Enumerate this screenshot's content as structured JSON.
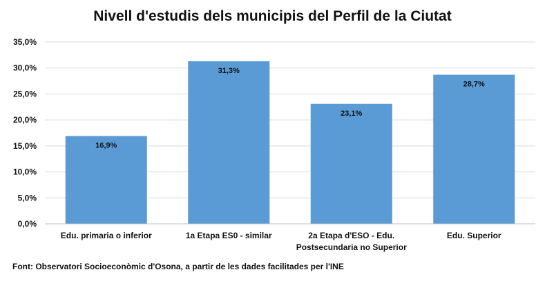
{
  "chart_data": {
    "type": "bar",
    "title": "Nivell d'estudis dels municipis del Perfil de la Ciutat",
    "categories": [
      [
        "Edu. primaria o inferior"
      ],
      [
        "1a Etapa ES0 - similar"
      ],
      [
        "2a Etapa d'ESO - Edu.",
        "Postsecundaria no Superior"
      ],
      [
        "Edu. Superior"
      ]
    ],
    "values": [
      16.9,
      31.3,
      23.1,
      28.7
    ],
    "data_labels": [
      "16,9%",
      "31,3%",
      "23,1%",
      "28,7%"
    ],
    "ylim": [
      0,
      35
    ],
    "yticks": [
      0,
      5,
      10,
      15,
      20,
      25,
      30,
      35
    ],
    "ytick_labels": [
      "0,0%",
      "5,0%",
      "10,0%",
      "15,0%",
      "20,0%",
      "25,0%",
      "30,0%",
      "35,0%"
    ],
    "xlabel": "",
    "ylabel": "",
    "grid": true,
    "bar_color": "#5b9bd5",
    "grid_color": "#d9d9d9"
  },
  "source_note": "Font: Observatori Socioeconòmic d'Osona,  a partir de les dades facilitades per l'INE"
}
